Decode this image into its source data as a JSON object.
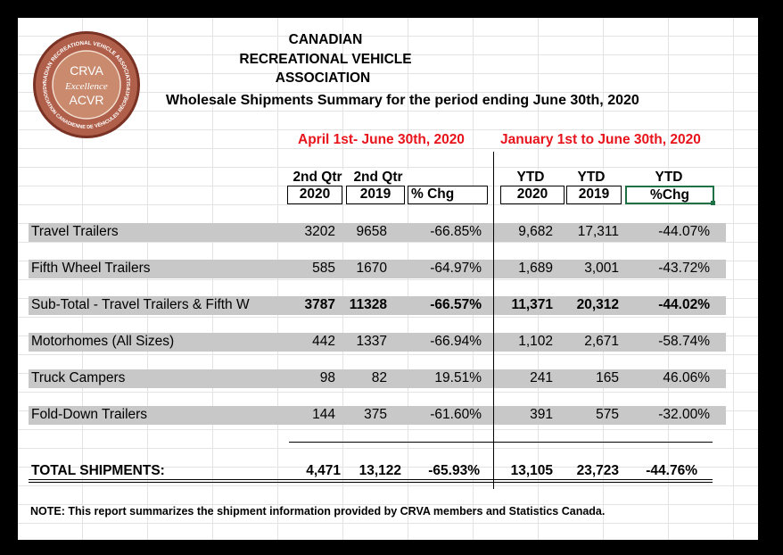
{
  "organization": {
    "line1": "CANADIAN",
    "line2": "RECREATIONAL VEHICLE",
    "line3": "ASSOCIATION"
  },
  "subtitle": "Wholesale Shipments Summary for the period ending June 30th, 2020",
  "logo": {
    "top_arc": "CANADIAN RECREATIONAL VEHICLE ASSOCIATION",
    "bottom_arc": "ASSOCIATION CANADIENNE DE VÉHICULES RÉCRÉATIFS",
    "crva": "CRVA",
    "excellence": "Excellence",
    "acvr": "ACVR",
    "colors": {
      "ring": "#9a4a3a",
      "inner": "#c98a6e",
      "text": "#ffffff"
    }
  },
  "periods": {
    "quarter": "April 1st- June 30th, 2020",
    "ytd": "January 1st to June 30th, 2020",
    "color": "#e8141b"
  },
  "columns": {
    "q2020_top": "2nd Qtr",
    "q2020_bottom": "2020",
    "q2019_top": "2nd Qtr",
    "q2019_bottom": "2019",
    "qchg": "% Chg",
    "ytd2020_top": "YTD",
    "ytd2020_bottom": "2020",
    "ytd2019_top": "YTD",
    "ytd2019_bottom": "2019",
    "ytdchg_top": "YTD",
    "ytdchg_bottom": "%Chg"
  },
  "rows": [
    {
      "label": "Travel Trailers",
      "q2020": "3202",
      "q2019": "9658",
      "qchg": "-66.85%",
      "y2020": "9,682",
      "y2019": "17,311",
      "ychg": "-44.07%"
    },
    {
      "label": "Fifth Wheel Trailers",
      "q2020": "585",
      "q2019": "1670",
      "qchg": "-64.97%",
      "y2020": "1,689",
      "y2019": "3,001",
      "ychg": "-43.72%"
    },
    {
      "label": "Sub-Total - Travel Trailers & Fifth W",
      "q2020": "3787",
      "q2019": "11328",
      "qchg": "-66.57%",
      "y2020": "11,371",
      "y2019": "20,312",
      "ychg": "-44.02%"
    },
    {
      "label": "Motorhomes (All Sizes)",
      "q2020": "442",
      "q2019": "1337",
      "qchg": "-66.94%",
      "y2020": "1,102",
      "y2019": "2,671",
      "ychg": "-58.74%"
    },
    {
      "label": "Truck Campers",
      "q2020": "98",
      "q2019": "82",
      "qchg": "19.51%",
      "y2020": "241",
      "y2019": "165",
      "ychg": "46.06%"
    },
    {
      "label": "Fold-Down Trailers",
      "q2020": "144",
      "q2019": "375",
      "qchg": "-61.60%",
      "y2020": "391",
      "y2019": "575",
      "ychg": "-32.00%"
    }
  ],
  "total": {
    "label": "TOTAL SHIPMENTS:",
    "q2020": "4,471",
    "q2019": "13,122",
    "qchg": "-65.93%",
    "y2020": "13,105",
    "y2019": "23,723",
    "ychg": "-44.76%"
  },
  "note": "NOTE: This report summarizes the shipment information provided by CRVA members and Statistics Canada.",
  "colors": {
    "band": "#c8c8c8",
    "grid": "#e3e3e3",
    "selection": "#1e7145"
  }
}
